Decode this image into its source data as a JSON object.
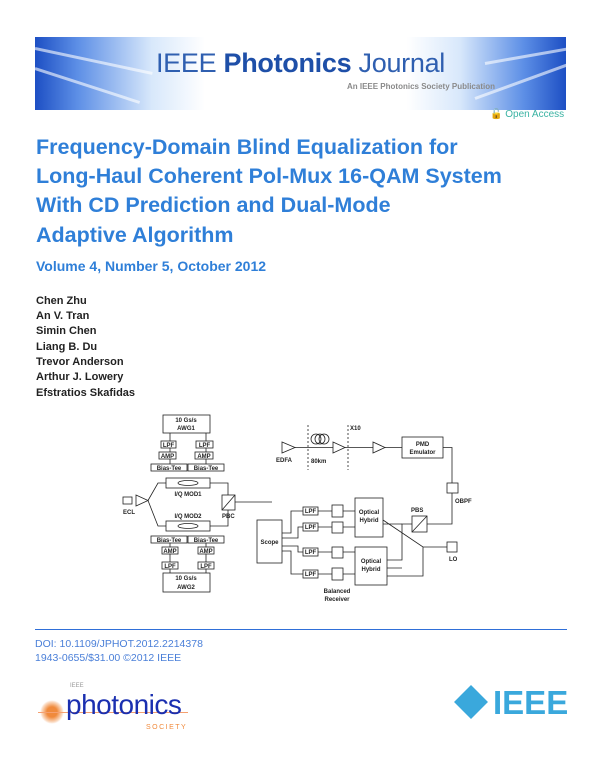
{
  "banner": {
    "journal_prefix": "IEEE",
    "journal_bold": "Photonics",
    "journal_suffix": "Journal",
    "subtitle": "An IEEE Photonics Society Publication"
  },
  "open_access": {
    "icon": "open-lock-icon",
    "label": "Open Access"
  },
  "title_lines": [
    "Frequency-Domain Blind Equalization for",
    "Long-Haul Coherent Pol-Mux 16-QAM System",
    "With CD Prediction and Dual-Mode",
    "Adaptive Algorithm"
  ],
  "volume": "Volume 4, Number 5, October 2012",
  "authors": [
    "Chen Zhu",
    "An V. Tran",
    "Simin Chen",
    "Liang B. Du",
    "Trevor Anderson",
    "Arthur J. Lowery",
    "Efstratios Skafidas"
  ],
  "figure": {
    "awg1_l1": "10 Gs/s",
    "awg1_l2": "AWG1",
    "awg2_l1": "10 Gs/s",
    "awg2_l2": "AWG2",
    "lpf": "LPF",
    "amp": "AMP",
    "bias_tee": "Bias-Tee",
    "iq_mod1": "I/Q MOD1",
    "iq_mod2": "I/Q MOD2",
    "ecl": "ECL",
    "pbc": "PBC",
    "edfa": "EDFA",
    "span": "80km",
    "loops": "X10",
    "pmd_l1": "PMD",
    "pmd_l2": "Emulator",
    "obpf": "OBPF",
    "pbs": "PBS",
    "hybrid_l1": "Optical",
    "hybrid_l2": "Hybrid",
    "scope": "Scope",
    "lo": "LO",
    "balanced_l1": "Balanced",
    "balanced_l2": "Receiver"
  },
  "doi": "DOI: 10.1109/JPHOT.2012.2214378",
  "copyright": "1943-0655/$31.00 ©2012 IEEE",
  "logos": {
    "society_small": "IEEE",
    "society_main": "photonics",
    "society_sub": "SOCIETY",
    "ieee": "IEEE"
  },
  "colors": {
    "title_blue": "#2f7fd8",
    "journal_blue": "#1e4fa8",
    "open_access": "#3bb3a3",
    "ieee_logo": "#3aa8dc",
    "society_orange": "#f08a3c"
  }
}
